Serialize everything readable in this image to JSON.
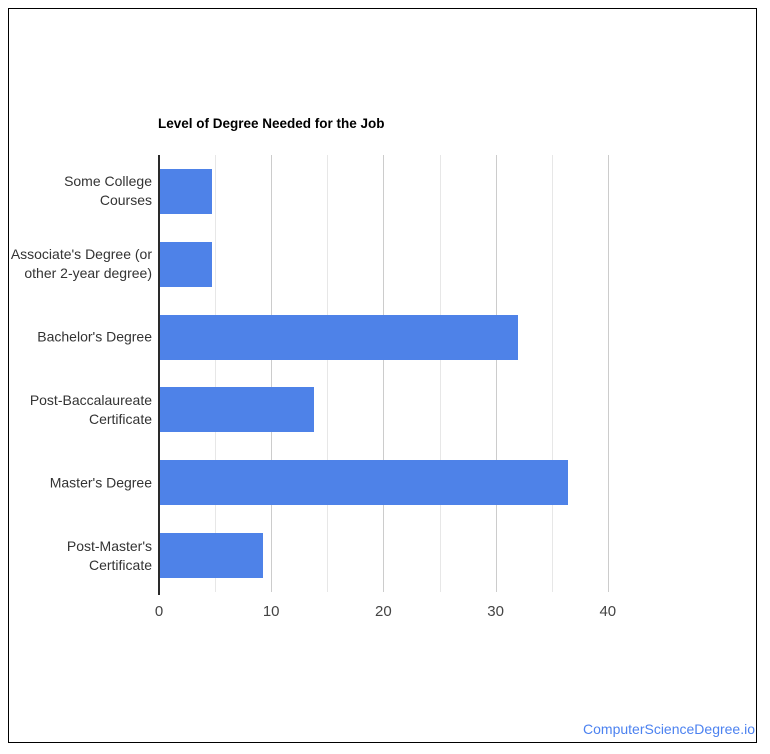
{
  "window": {
    "background": "#ffffff",
    "frame_border_color": "#000000"
  },
  "chart_data": {
    "type": "bar",
    "orientation": "horizontal",
    "title": "Level of Degree Needed for the Job",
    "categories": [
      "Some College Courses",
      "Associate's Degree (or\nother 2-year degree)",
      "Bachelor's Degree",
      "Post-Baccalaureate\nCertificate",
      "Master's Degree",
      "Post-Master's\nCertificate"
    ],
    "values": [
      4.6,
      4.6,
      31.9,
      13.7,
      36.4,
      9.2
    ],
    "xlabel": "",
    "ylabel": "",
    "xlim": [
      0,
      40
    ],
    "x_major_ticks": [
      0,
      10,
      20,
      30,
      40
    ],
    "x_minor_gridlines": [
      5,
      15,
      25,
      35
    ],
    "grid": "vertical-only",
    "legend": "none",
    "bar_color": "#4e82e8",
    "major_gridline_color": "#cccccc",
    "minor_gridline_color": "#e7e7e7",
    "axis_line_color": "#2a2a2a",
    "title_color": "#000000",
    "category_label_color": "#333333",
    "tick_label_color": "#444444"
  },
  "footer": {
    "watermark": "ComputerScienceDegree.io",
    "link_color": "#4c82f0"
  }
}
